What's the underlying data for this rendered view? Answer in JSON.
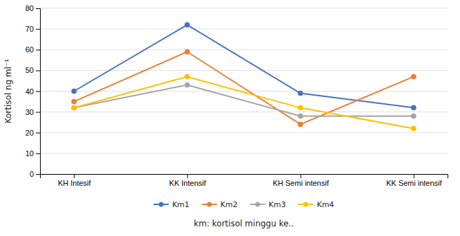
{
  "chart_data": {
    "type": "line",
    "categories": [
      "KH Intesif",
      "KK Intensif",
      "KH Semi intensif",
      "KK Semi intensif"
    ],
    "series": [
      {
        "name": "Km1",
        "color": "#4472C4",
        "values": [
          40,
          72,
          39,
          32
        ]
      },
      {
        "name": "Km2",
        "color": "#ED7D31",
        "values": [
          35,
          59,
          24,
          47
        ]
      },
      {
        "name": "Km3",
        "color": "#A5A5A5",
        "values": [
          32,
          43,
          28,
          28
        ]
      },
      {
        "name": "Km4",
        "color": "#FFC000",
        "values": [
          32,
          47,
          32,
          22
        ]
      }
    ],
    "ylabel": "Kortisol ng ml⁻¹",
    "xlabel": "km: kortisol minggu ke..",
    "ylim": [
      0,
      80
    ],
    "yticks": [
      0,
      10,
      20,
      30,
      40,
      50,
      60,
      70,
      80
    ],
    "grid": true,
    "legend": "bottom",
    "marker": "circle"
  }
}
